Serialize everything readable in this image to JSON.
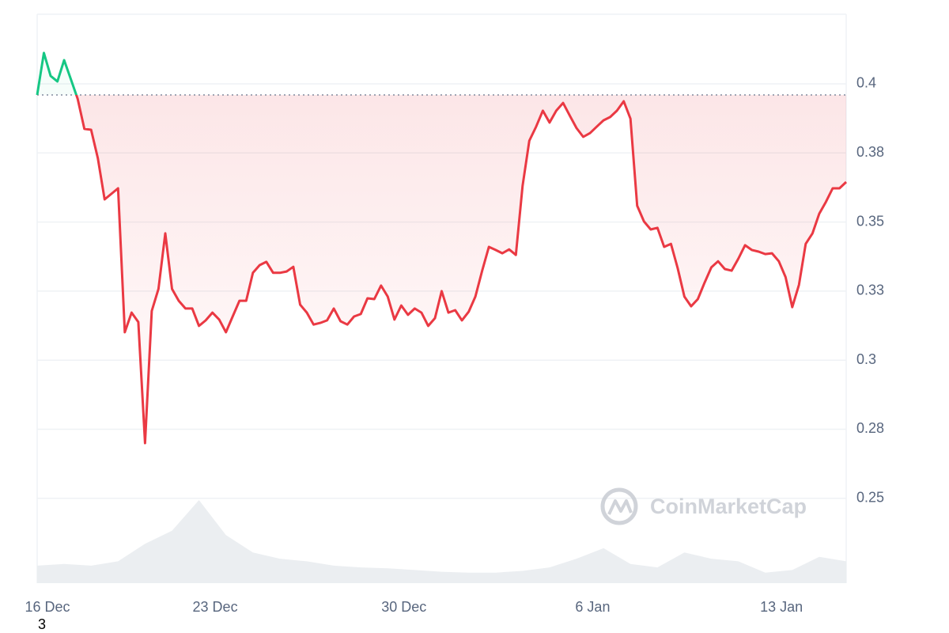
{
  "chart_data": {
    "type": "line",
    "x": [
      0.4,
      0.65,
      0.9,
      1.15,
      1.4,
      1.65,
      1.9,
      2.15,
      2.4,
      2.65,
      2.9,
      3.15,
      3.4,
      3.65,
      3.9,
      4.15,
      4.4,
      4.65,
      4.9,
      5.15,
      5.4,
      5.65,
      5.9,
      6.15,
      6.4,
      6.65,
      6.9,
      7.15,
      7.4,
      7.65,
      7.9,
      8.15,
      8.4,
      8.65,
      8.9,
      9.15,
      9.4,
      9.65,
      9.9,
      10.15,
      10.4,
      10.65,
      10.9,
      11.15,
      11.4,
      11.65,
      11.9,
      12.15,
      12.4,
      12.65,
      12.9,
      13.15,
      13.4,
      13.65,
      13.9,
      14.15,
      14.4,
      14.65,
      14.9,
      15.15,
      15.4,
      15.65,
      15.9,
      16.15,
      16.4,
      16.65,
      16.9,
      17.15,
      17.4,
      17.65,
      17.9,
      18.15,
      18.4,
      18.65,
      18.9,
      19.15,
      19.4,
      19.65,
      19.9,
      20.15,
      20.4,
      20.65,
      20.9,
      21.15,
      21.4,
      21.65,
      21.9,
      22.15,
      22.4,
      22.65,
      22.9,
      23.15,
      23.4,
      23.65,
      23.9,
      24.15,
      24.4,
      24.65,
      24.9,
      25.15,
      25.4,
      25.65,
      25.9,
      26.15,
      26.4,
      26.65,
      26.9,
      27.15,
      27.4,
      27.65,
      27.9,
      28.15,
      28.4,
      28.65,
      28.9,
      29.15,
      29.4,
      29.65,
      29.9,
      30.15,
      30.4
    ],
    "values": [
      0.396,
      0.4112,
      0.4029,
      0.4009,
      0.4086,
      0.4017,
      0.3946,
      0.3837,
      0.3834,
      0.3731,
      0.3582,
      0.3602,
      0.3622,
      0.3101,
      0.3172,
      0.3138,
      0.27,
      0.3178,
      0.3258,
      0.3459,
      0.3258,
      0.3215,
      0.3187,
      0.3187,
      0.3124,
      0.3144,
      0.3172,
      0.3147,
      0.3101,
      0.3158,
      0.3215,
      0.3215,
      0.3316,
      0.3344,
      0.3356,
      0.3316,
      0.3316,
      0.3321,
      0.3338,
      0.3201,
      0.3172,
      0.3129,
      0.3135,
      0.3144,
      0.3187,
      0.3141,
      0.3129,
      0.3158,
      0.3167,
      0.3224,
      0.3221,
      0.327,
      0.323,
      0.3147,
      0.3198,
      0.3164,
      0.3187,
      0.3172,
      0.3124,
      0.3152,
      0.325,
      0.3172,
      0.3181,
      0.3144,
      0.3175,
      0.323,
      0.3324,
      0.341,
      0.3399,
      0.3387,
      0.3401,
      0.3381,
      0.3631,
      0.3794,
      0.3845,
      0.3903,
      0.386,
      0.3903,
      0.3931,
      0.3885,
      0.384,
      0.3808,
      0.3822,
      0.3845,
      0.3868,
      0.388,
      0.3903,
      0.3937,
      0.3874,
      0.3559,
      0.3502,
      0.3473,
      0.3479,
      0.341,
      0.3421,
      0.3333,
      0.323,
      0.3195,
      0.3221,
      0.3281,
      0.3336,
      0.3358,
      0.333,
      0.3324,
      0.3367,
      0.3416,
      0.3399,
      0.3393,
      0.3384,
      0.3387,
      0.3358,
      0.3301,
      0.3192,
      0.3273,
      0.3421,
      0.3459,
      0.353,
      0.3573,
      0.3622,
      0.3622,
      0.3645
    ],
    "baseline": 0.396,
    "up_color": "#16c784",
    "down_color": "#ea3943",
    "volume": {
      "x": [
        0.4,
        1.4,
        2.4,
        3.4,
        4.4,
        5.4,
        6.4,
        7.4,
        8.4,
        9.4,
        10.4,
        11.4,
        12.4,
        13.4,
        14.4,
        15.4,
        16.4,
        17.4,
        18.4,
        19.4,
        20.4,
        21.4,
        22.4,
        23.4,
        24.4,
        25.4,
        26.4,
        27.4,
        28.4,
        29.4,
        30.4
      ],
      "values": [
        20,
        22,
        20,
        25,
        45,
        60,
        95,
        55,
        35,
        28,
        25,
        20,
        18,
        17,
        15,
        13,
        12,
        12,
        14,
        18,
        28,
        40,
        22,
        18,
        35,
        28,
        25,
        12,
        15,
        30,
        25
      ]
    },
    "xlim": [
      0.4,
      30.4
    ],
    "xticks": [
      {
        "value": 0,
        "label": "16 Dec"
      },
      {
        "value": 7,
        "label": "23 Dec"
      },
      {
        "value": 14,
        "label": "30 Dec"
      },
      {
        "value": 21,
        "label": "6 Jan"
      },
      {
        "value": 28,
        "label": "13 Jan"
      }
    ],
    "ylim": [
      0.2193,
      0.4252
    ],
    "yticks": [
      0.25,
      {
        "value": 0.275,
        "label": "0.28"
      },
      0.3,
      {
        "value": 0.325,
        "label": "0.33"
      },
      0.35,
      {
        "value": 0.375,
        "label": "0.38"
      },
      0.4
    ],
    "grid": true,
    "watermark": "CoinMarketCap",
    "footnote": "3"
  }
}
